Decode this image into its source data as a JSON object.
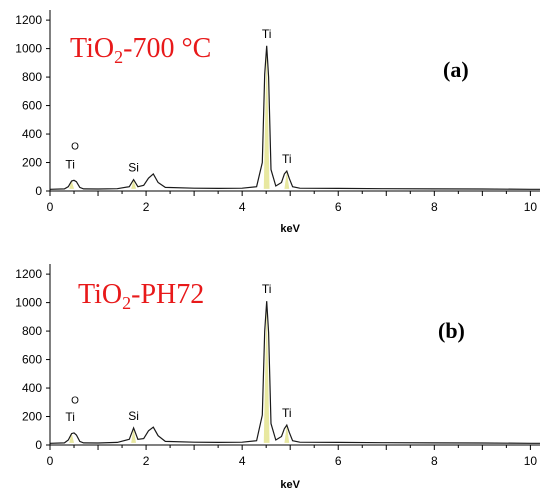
{
  "chart_data": [
    {
      "type": "line",
      "panel": "(a)",
      "title": "TiO2-700 °C",
      "title_color": "#e8191a",
      "xlabel": "keV",
      "xlim": [
        0,
        10.2
      ],
      "ylim": [
        0,
        1250
      ],
      "x_ticks": [
        0,
        2,
        4,
        6,
        8,
        10
      ],
      "y_ticks": [
        0,
        200,
        400,
        600,
        800,
        1000,
        1200
      ],
      "line_color": "#1a1a1a",
      "peak_fill": "#e8e8a0",
      "peaks": [
        {
          "label": "O",
          "x": 0.52,
          "y": 40,
          "small": true
        },
        {
          "label": "Ti",
          "x": 0.45,
          "y": 75
        },
        {
          "label": "Si",
          "x": 1.74,
          "y": 80
        },
        {
          "label": "Ti",
          "x": 4.51,
          "y": 1020
        },
        {
          "label": "Ti",
          "x": 4.93,
          "y": 140
        }
      ],
      "x": [
        0,
        0.3,
        0.38,
        0.45,
        0.5,
        0.55,
        0.62,
        0.7,
        1.0,
        1.4,
        1.65,
        1.74,
        1.83,
        1.95,
        2.05,
        2.15,
        2.25,
        2.4,
        3.0,
        3.5,
        4.0,
        4.3,
        4.42,
        4.47,
        4.51,
        4.55,
        4.6,
        4.7,
        4.82,
        4.88,
        4.93,
        4.98,
        5.05,
        5.2,
        6.0,
        7.0,
        8.0,
        9.0,
        10.0,
        10.2
      ],
      "y": [
        12,
        15,
        30,
        70,
        75,
        65,
        25,
        15,
        14,
        16,
        30,
        80,
        30,
        40,
        90,
        120,
        60,
        25,
        20,
        18,
        20,
        30,
        200,
        820,
        1020,
        800,
        150,
        35,
        60,
        120,
        140,
        90,
        30,
        20,
        18,
        16,
        15,
        14,
        12,
        12
      ]
    },
    {
      "type": "line",
      "panel": "(b)",
      "title": "TiO2-PH72",
      "title_color": "#e8191a",
      "xlabel": "keV",
      "xlim": [
        0,
        10.2
      ],
      "ylim": [
        0,
        1250
      ],
      "x_ticks": [
        0,
        2,
        4,
        6,
        8,
        10
      ],
      "y_ticks": [
        0,
        200,
        400,
        600,
        800,
        1000,
        1200
      ],
      "line_color": "#1a1a1a",
      "peak_fill": "#e8e8a0",
      "peaks": [
        {
          "label": "O",
          "x": 0.52,
          "y": 40,
          "small": true
        },
        {
          "label": "Ti",
          "x": 0.45,
          "y": 85
        },
        {
          "label": "Si",
          "x": 1.74,
          "y": 120
        },
        {
          "label": "Ti",
          "x": 4.51,
          "y": 1010
        },
        {
          "label": "Ti",
          "x": 4.93,
          "y": 140
        }
      ],
      "x": [
        0,
        0.3,
        0.38,
        0.45,
        0.5,
        0.55,
        0.62,
        0.7,
        1.0,
        1.4,
        1.65,
        1.74,
        1.83,
        1.95,
        2.05,
        2.15,
        2.25,
        2.4,
        3.0,
        3.5,
        4.0,
        4.3,
        4.42,
        4.47,
        4.51,
        4.55,
        4.6,
        4.7,
        4.82,
        4.88,
        4.93,
        4.98,
        5.05,
        5.2,
        6.0,
        7.0,
        8.0,
        9.0,
        10.0,
        10.2
      ],
      "y": [
        12,
        15,
        35,
        80,
        85,
        70,
        25,
        15,
        14,
        18,
        40,
        120,
        40,
        45,
        100,
        125,
        65,
        25,
        20,
        18,
        20,
        30,
        210,
        800,
        1010,
        790,
        150,
        35,
        60,
        115,
        140,
        90,
        30,
        20,
        18,
        16,
        15,
        14,
        12,
        12
      ]
    }
  ]
}
